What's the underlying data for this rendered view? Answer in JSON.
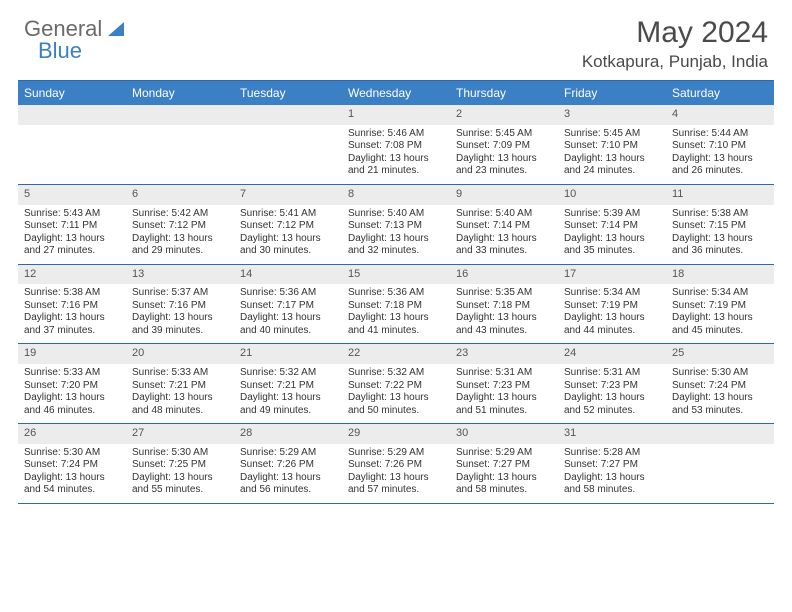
{
  "logo": {
    "word1": "General",
    "word2": "Blue"
  },
  "title": "May 2024",
  "location": "Kotkapura, Punjab, India",
  "colors": {
    "header_bg": "#3b7fc4",
    "header_border": "#2f6aa8",
    "daynum_bg": "#ececec",
    "text": "#333333",
    "logo_gray": "#6b6b6b"
  },
  "day_names": [
    "Sunday",
    "Monday",
    "Tuesday",
    "Wednesday",
    "Thursday",
    "Friday",
    "Saturday"
  ],
  "weeks": [
    [
      {
        "n": "",
        "sr": "",
        "ss": "",
        "dl": ""
      },
      {
        "n": "",
        "sr": "",
        "ss": "",
        "dl": ""
      },
      {
        "n": "",
        "sr": "",
        "ss": "",
        "dl": ""
      },
      {
        "n": "1",
        "sr": "Sunrise: 5:46 AM",
        "ss": "Sunset: 7:08 PM",
        "dl": "Daylight: 13 hours and 21 minutes."
      },
      {
        "n": "2",
        "sr": "Sunrise: 5:45 AM",
        "ss": "Sunset: 7:09 PM",
        "dl": "Daylight: 13 hours and 23 minutes."
      },
      {
        "n": "3",
        "sr": "Sunrise: 5:45 AM",
        "ss": "Sunset: 7:10 PM",
        "dl": "Daylight: 13 hours and 24 minutes."
      },
      {
        "n": "4",
        "sr": "Sunrise: 5:44 AM",
        "ss": "Sunset: 7:10 PM",
        "dl": "Daylight: 13 hours and 26 minutes."
      }
    ],
    [
      {
        "n": "5",
        "sr": "Sunrise: 5:43 AM",
        "ss": "Sunset: 7:11 PM",
        "dl": "Daylight: 13 hours and 27 minutes."
      },
      {
        "n": "6",
        "sr": "Sunrise: 5:42 AM",
        "ss": "Sunset: 7:12 PM",
        "dl": "Daylight: 13 hours and 29 minutes."
      },
      {
        "n": "7",
        "sr": "Sunrise: 5:41 AM",
        "ss": "Sunset: 7:12 PM",
        "dl": "Daylight: 13 hours and 30 minutes."
      },
      {
        "n": "8",
        "sr": "Sunrise: 5:40 AM",
        "ss": "Sunset: 7:13 PM",
        "dl": "Daylight: 13 hours and 32 minutes."
      },
      {
        "n": "9",
        "sr": "Sunrise: 5:40 AM",
        "ss": "Sunset: 7:14 PM",
        "dl": "Daylight: 13 hours and 33 minutes."
      },
      {
        "n": "10",
        "sr": "Sunrise: 5:39 AM",
        "ss": "Sunset: 7:14 PM",
        "dl": "Daylight: 13 hours and 35 minutes."
      },
      {
        "n": "11",
        "sr": "Sunrise: 5:38 AM",
        "ss": "Sunset: 7:15 PM",
        "dl": "Daylight: 13 hours and 36 minutes."
      }
    ],
    [
      {
        "n": "12",
        "sr": "Sunrise: 5:38 AM",
        "ss": "Sunset: 7:16 PM",
        "dl": "Daylight: 13 hours and 37 minutes."
      },
      {
        "n": "13",
        "sr": "Sunrise: 5:37 AM",
        "ss": "Sunset: 7:16 PM",
        "dl": "Daylight: 13 hours and 39 minutes."
      },
      {
        "n": "14",
        "sr": "Sunrise: 5:36 AM",
        "ss": "Sunset: 7:17 PM",
        "dl": "Daylight: 13 hours and 40 minutes."
      },
      {
        "n": "15",
        "sr": "Sunrise: 5:36 AM",
        "ss": "Sunset: 7:18 PM",
        "dl": "Daylight: 13 hours and 41 minutes."
      },
      {
        "n": "16",
        "sr": "Sunrise: 5:35 AM",
        "ss": "Sunset: 7:18 PM",
        "dl": "Daylight: 13 hours and 43 minutes."
      },
      {
        "n": "17",
        "sr": "Sunrise: 5:34 AM",
        "ss": "Sunset: 7:19 PM",
        "dl": "Daylight: 13 hours and 44 minutes."
      },
      {
        "n": "18",
        "sr": "Sunrise: 5:34 AM",
        "ss": "Sunset: 7:19 PM",
        "dl": "Daylight: 13 hours and 45 minutes."
      }
    ],
    [
      {
        "n": "19",
        "sr": "Sunrise: 5:33 AM",
        "ss": "Sunset: 7:20 PM",
        "dl": "Daylight: 13 hours and 46 minutes."
      },
      {
        "n": "20",
        "sr": "Sunrise: 5:33 AM",
        "ss": "Sunset: 7:21 PM",
        "dl": "Daylight: 13 hours and 48 minutes."
      },
      {
        "n": "21",
        "sr": "Sunrise: 5:32 AM",
        "ss": "Sunset: 7:21 PM",
        "dl": "Daylight: 13 hours and 49 minutes."
      },
      {
        "n": "22",
        "sr": "Sunrise: 5:32 AM",
        "ss": "Sunset: 7:22 PM",
        "dl": "Daylight: 13 hours and 50 minutes."
      },
      {
        "n": "23",
        "sr": "Sunrise: 5:31 AM",
        "ss": "Sunset: 7:23 PM",
        "dl": "Daylight: 13 hours and 51 minutes."
      },
      {
        "n": "24",
        "sr": "Sunrise: 5:31 AM",
        "ss": "Sunset: 7:23 PM",
        "dl": "Daylight: 13 hours and 52 minutes."
      },
      {
        "n": "25",
        "sr": "Sunrise: 5:30 AM",
        "ss": "Sunset: 7:24 PM",
        "dl": "Daylight: 13 hours and 53 minutes."
      }
    ],
    [
      {
        "n": "26",
        "sr": "Sunrise: 5:30 AM",
        "ss": "Sunset: 7:24 PM",
        "dl": "Daylight: 13 hours and 54 minutes."
      },
      {
        "n": "27",
        "sr": "Sunrise: 5:30 AM",
        "ss": "Sunset: 7:25 PM",
        "dl": "Daylight: 13 hours and 55 minutes."
      },
      {
        "n": "28",
        "sr": "Sunrise: 5:29 AM",
        "ss": "Sunset: 7:26 PM",
        "dl": "Daylight: 13 hours and 56 minutes."
      },
      {
        "n": "29",
        "sr": "Sunrise: 5:29 AM",
        "ss": "Sunset: 7:26 PM",
        "dl": "Daylight: 13 hours and 57 minutes."
      },
      {
        "n": "30",
        "sr": "Sunrise: 5:29 AM",
        "ss": "Sunset: 7:27 PM",
        "dl": "Daylight: 13 hours and 58 minutes."
      },
      {
        "n": "31",
        "sr": "Sunrise: 5:28 AM",
        "ss": "Sunset: 7:27 PM",
        "dl": "Daylight: 13 hours and 58 minutes."
      },
      {
        "n": "",
        "sr": "",
        "ss": "",
        "dl": ""
      }
    ]
  ]
}
